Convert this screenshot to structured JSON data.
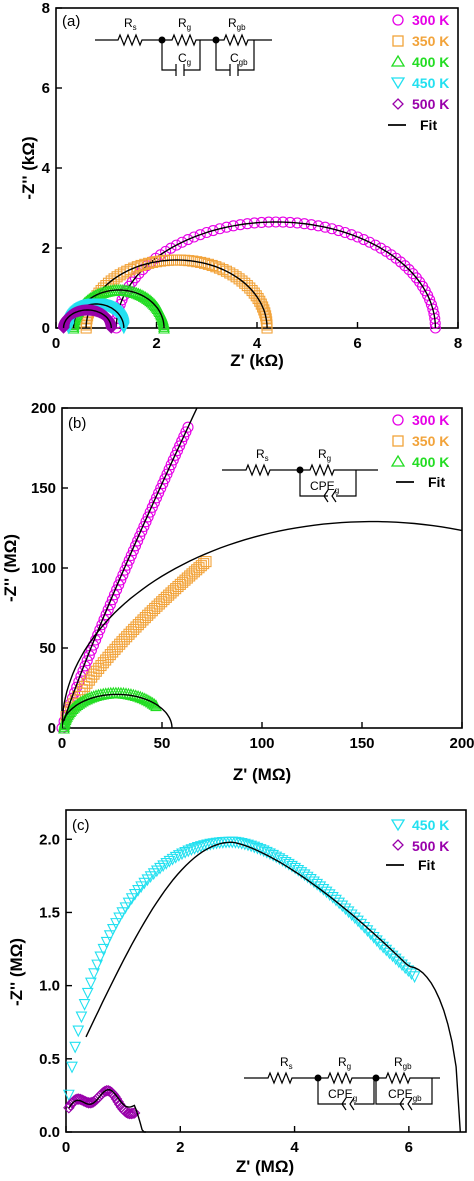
{
  "chart_data": [
    {
      "type": "scatter",
      "panel_label": "(a)",
      "xlabel": "Z' (kΩ)",
      "ylabel": "-Z'' (kΩ)",
      "xlim": [
        0,
        8
      ],
      "ylim": [
        0,
        8
      ],
      "xticks": [
        "0",
        "2",
        "4",
        "6",
        "8"
      ],
      "yticks": [
        "0",
        "2",
        "4",
        "6",
        "8"
      ],
      "legend_position": "top-right",
      "circuit": {
        "elements": [
          "R",
          "s",
          "R",
          "g",
          "C",
          "g",
          "R",
          "gb",
          "C",
          "gb"
        ]
      },
      "series": [
        {
          "name": "300 K",
          "color": "#e600e6",
          "marker": "circle",
          "arc": {
            "x_start": 1.2,
            "x_end": 7.55,
            "peak": 2.65
          }
        },
        {
          "name": "350 K",
          "color": "#f2a33a",
          "marker": "square",
          "arc": {
            "x_start": 0.6,
            "x_end": 4.2,
            "peak": 1.7
          }
        },
        {
          "name": "400 K",
          "color": "#22dd22",
          "marker": "triangle-up",
          "arc": {
            "x_start": 0.35,
            "x_end": 2.15,
            "peak": 0.95
          }
        },
        {
          "name": "450 K",
          "color": "#22e0f0",
          "marker": "triangle-down",
          "arc": {
            "x_start": 0.25,
            "x_end": 1.35,
            "peak": 0.6
          }
        },
        {
          "name": "500 K",
          "color": "#9900aa",
          "marker": "diamond",
          "arc": {
            "x_start": 0.15,
            "x_end": 1.1,
            "peak": 0.45
          }
        }
      ],
      "fit_label": "Fit"
    },
    {
      "type": "scatter",
      "panel_label": "(b)",
      "xlabel": "Z' (MΩ)",
      "ylabel": "-Z'' (MΩ)",
      "xlim": [
        0,
        200
      ],
      "ylim": [
        0,
        200
      ],
      "xticks": [
        "0",
        "50",
        "100",
        "150",
        "200"
      ],
      "yticks": [
        "0",
        "50",
        "100",
        "150",
        "200"
      ],
      "legend_position": "top-right",
      "circuit": {
        "elements": [
          "R",
          "s",
          "R",
          "g",
          "CPE",
          "g"
        ]
      },
      "series": [
        {
          "name": "300 K",
          "color": "#e600e6",
          "marker": "circle",
          "range": [
            0,
            63
          ],
          "peak": 188
        },
        {
          "name": "350 K",
          "color": "#f2a33a",
          "marker": "square",
          "range": [
            2,
            72
          ],
          "peak": 104
        },
        {
          "name": "400 K",
          "color": "#22dd22",
          "marker": "triangle-up",
          "range": [
            1,
            42
          ],
          "peak": 22
        }
      ],
      "fit_label": "Fit"
    },
    {
      "type": "scatter",
      "panel_label": "(c)",
      "xlabel": "Z' (MΩ)",
      "ylabel": "-Z'' (MΩ)",
      "xlim": [
        0,
        7
      ],
      "ylim": [
        0,
        2.2
      ],
      "xticks": [
        "0",
        "2",
        "4",
        "6"
      ],
      "yticks": [
        "0.0",
        "0.5",
        "1.0",
        "1.5",
        "2.0"
      ],
      "legend_position": "top-right",
      "circuit": {
        "elements": [
          "R",
          "s",
          "R",
          "g",
          "CPE",
          "g",
          "R",
          "gb",
          "CPE",
          "gb"
        ]
      },
      "series": [
        {
          "name": "450 K",
          "color": "#22e0f0",
          "marker": "triangle-down",
          "range": [
            0.05,
            6.1
          ],
          "peak": 1.98
        },
        {
          "name": "500 K",
          "color": "#9900aa",
          "marker": "diamond",
          "range": [
            0.05,
            1.2
          ],
          "peak": 0.3
        }
      ],
      "fit_label": "Fit"
    }
  ]
}
